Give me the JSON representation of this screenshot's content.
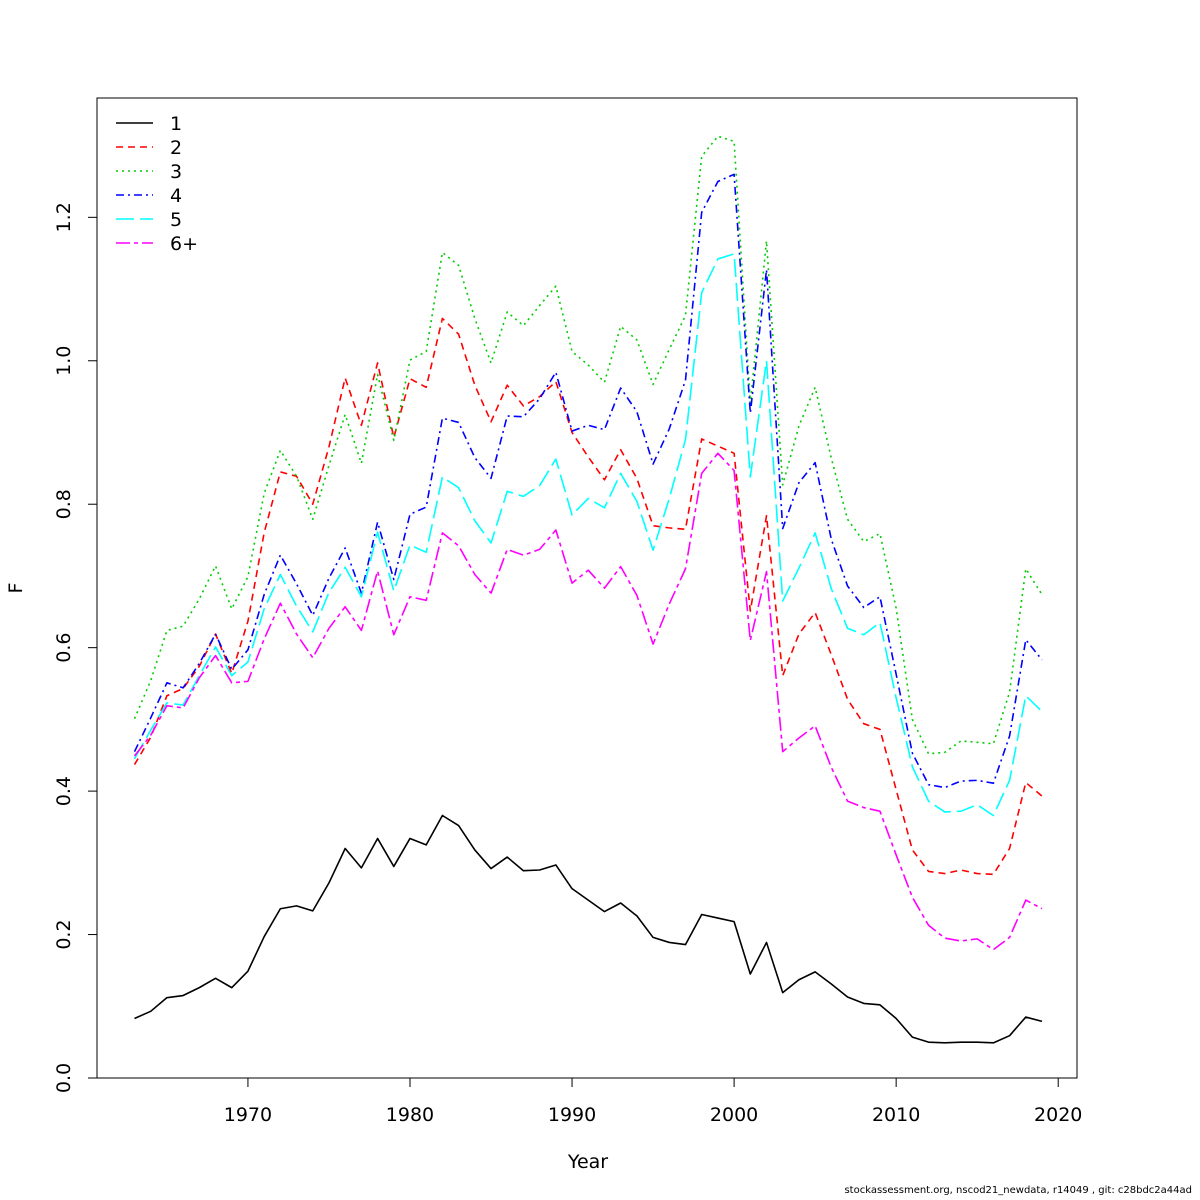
{
  "footer_text": "stockassessment.org, nscod21_newdata, r14049 , git: c28bdc2a44ad",
  "chart_data": {
    "type": "line",
    "title": "",
    "xlabel": "Year",
    "ylabel": "F",
    "xlim": [
      1963,
      2019
    ],
    "ylim": [
      0,
      1.312
    ],
    "xticks": [
      1970,
      1980,
      1990,
      2000,
      2010,
      2020
    ],
    "yticks": [
      0.0,
      0.2,
      0.4,
      0.6,
      0.8,
      1.0,
      1.2
    ],
    "ytick_labels": [
      "0.0",
      "0.2",
      "0.4",
      "0.6",
      "0.8",
      "1.0",
      "1.2"
    ],
    "grid": false,
    "legend_position": "top-left",
    "x": [
      1963,
      1964,
      1965,
      1966,
      1967,
      1968,
      1969,
      1970,
      1971,
      1972,
      1973,
      1974,
      1975,
      1976,
      1977,
      1978,
      1979,
      1980,
      1981,
      1982,
      1983,
      1984,
      1985,
      1986,
      1987,
      1988,
      1989,
      1990,
      1991,
      1992,
      1993,
      1994,
      1995,
      1996,
      1997,
      1998,
      1999,
      2000,
      2001,
      2002,
      2003,
      2004,
      2005,
      2006,
      2007,
      2008,
      2009,
      2010,
      2011,
      2012,
      2013,
      2014,
      2015,
      2016,
      2017,
      2018,
      2019
    ],
    "series": [
      {
        "name": "1",
        "color": "#000000",
        "dash": "",
        "values": [
          0.083,
          0.093,
          0.112,
          0.115,
          0.126,
          0.139,
          0.126,
          0.149,
          0.197,
          0.236,
          0.24,
          0.233,
          0.272,
          0.32,
          0.293,
          0.334,
          0.295,
          0.334,
          0.325,
          0.366,
          0.352,
          0.318,
          0.292,
          0.308,
          0.289,
          0.29,
          0.297,
          0.264,
          0.248,
          0.232,
          0.244,
          0.226,
          0.196,
          0.189,
          0.186,
          0.228,
          0.223,
          0.218,
          0.145,
          0.189,
          0.119,
          0.137,
          0.148,
          0.131,
          0.113,
          0.104,
          0.102,
          0.083,
          0.057,
          0.05,
          0.049,
          0.05,
          0.05,
          0.049,
          0.059,
          0.085,
          0.079
        ]
      },
      {
        "name": "2",
        "color": "#ff0000",
        "dash": "7,5",
        "values": [
          0.437,
          0.475,
          0.533,
          0.543,
          0.574,
          0.619,
          0.564,
          0.637,
          0.76,
          0.845,
          0.839,
          0.8,
          0.88,
          0.976,
          0.91,
          0.997,
          0.893,
          0.975,
          0.963,
          1.059,
          1.037,
          0.966,
          0.915,
          0.966,
          0.937,
          0.95,
          0.971,
          0.9,
          0.866,
          0.834,
          0.876,
          0.836,
          0.77,
          0.767,
          0.765,
          0.891,
          0.881,
          0.871,
          0.651,
          0.784,
          0.561,
          0.619,
          0.649,
          0.59,
          0.528,
          0.494,
          0.486,
          0.402,
          0.318,
          0.288,
          0.285,
          0.29,
          0.285,
          0.284,
          0.32,
          0.412,
          0.393
        ]
      },
      {
        "name": "3",
        "color": "#00cd00",
        "dash": "2,4",
        "values": [
          0.501,
          0.554,
          0.624,
          0.63,
          0.668,
          0.714,
          0.654,
          0.699,
          0.815,
          0.875,
          0.839,
          0.779,
          0.854,
          0.925,
          0.857,
          0.981,
          0.889,
          1.001,
          1.013,
          1.151,
          1.133,
          1.059,
          0.997,
          1.068,
          1.049,
          1.077,
          1.104,
          1.013,
          0.994,
          0.97,
          1.048,
          1.029,
          0.967,
          1.016,
          1.063,
          1.285,
          1.313,
          1.306,
          0.941,
          1.167,
          0.827,
          0.909,
          0.963,
          0.864,
          0.779,
          0.748,
          0.759,
          0.655,
          0.5,
          0.452,
          0.454,
          0.47,
          0.468,
          0.466,
          0.538,
          0.71,
          0.674
        ]
      },
      {
        "name": "4",
        "color": "#0000ff",
        "dash": "8,4,2,4",
        "values": [
          0.455,
          0.502,
          0.551,
          0.544,
          0.578,
          0.619,
          0.57,
          0.597,
          0.674,
          0.729,
          0.689,
          0.645,
          0.697,
          0.739,
          0.676,
          0.775,
          0.695,
          0.786,
          0.796,
          0.92,
          0.914,
          0.865,
          0.836,
          0.923,
          0.922,
          0.947,
          0.984,
          0.902,
          0.91,
          0.904,
          0.962,
          0.929,
          0.856,
          0.905,
          0.973,
          1.207,
          1.25,
          1.26,
          0.927,
          1.127,
          0.766,
          0.83,
          0.858,
          0.751,
          0.686,
          0.656,
          0.671,
          0.563,
          0.453,
          0.409,
          0.405,
          0.414,
          0.415,
          0.411,
          0.477,
          0.611,
          0.583
        ]
      },
      {
        "name": "5",
        "color": "#00ffff",
        "dash": "18,6",
        "values": [
          0.445,
          0.485,
          0.523,
          0.52,
          0.561,
          0.601,
          0.561,
          0.58,
          0.654,
          0.702,
          0.658,
          0.622,
          0.677,
          0.712,
          0.671,
          0.761,
          0.679,
          0.743,
          0.733,
          0.838,
          0.823,
          0.777,
          0.746,
          0.818,
          0.811,
          0.826,
          0.863,
          0.785,
          0.808,
          0.795,
          0.843,
          0.804,
          0.736,
          0.808,
          0.89,
          1.095,
          1.142,
          1.149,
          0.838,
          1.0,
          0.665,
          0.711,
          0.76,
          0.682,
          0.627,
          0.618,
          0.635,
          0.53,
          0.434,
          0.386,
          0.371,
          0.372,
          0.381,
          0.366,
          0.415,
          0.533,
          0.511
        ]
      },
      {
        "name": "6+",
        "color": "#ff00ff",
        "dash": "14,4,4,4",
        "values": [
          0.449,
          0.478,
          0.519,
          0.516,
          0.558,
          0.589,
          0.551,
          0.553,
          0.612,
          0.662,
          0.619,
          0.586,
          0.627,
          0.657,
          0.624,
          0.707,
          0.618,
          0.671,
          0.666,
          0.76,
          0.742,
          0.702,
          0.676,
          0.737,
          0.729,
          0.737,
          0.764,
          0.69,
          0.708,
          0.683,
          0.713,
          0.673,
          0.605,
          0.661,
          0.71,
          0.843,
          0.871,
          0.847,
          0.61,
          0.706,
          0.455,
          0.474,
          0.491,
          0.433,
          0.386,
          0.377,
          0.372,
          0.311,
          0.252,
          0.213,
          0.195,
          0.191,
          0.194,
          0.179,
          0.196,
          0.248,
          0.236
        ]
      }
    ]
  }
}
